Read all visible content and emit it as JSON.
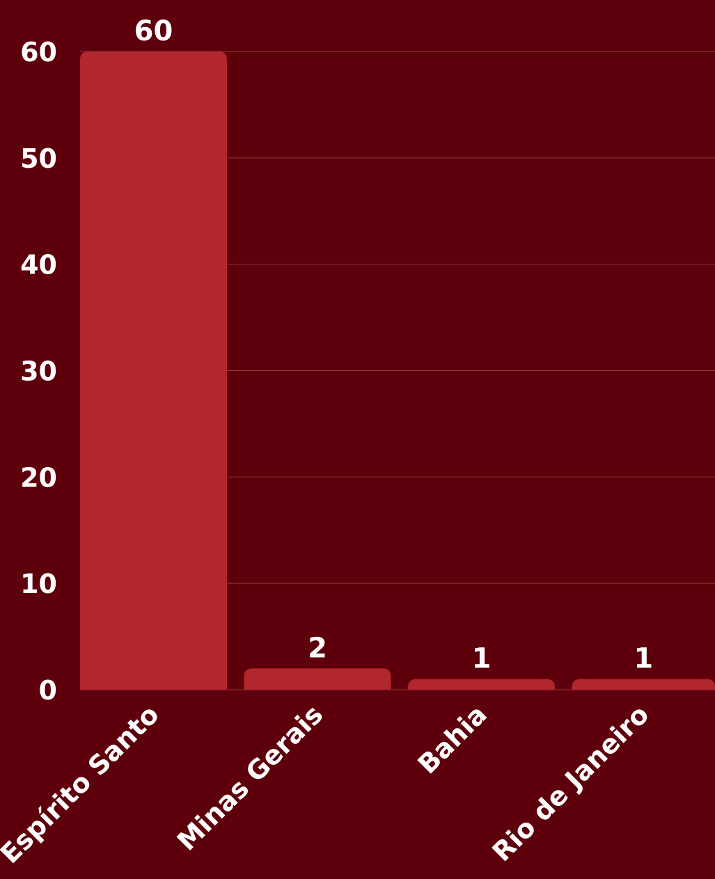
{
  "colors": {
    "background": "#5e000b",
    "bar": "#b2262e",
    "grid": "#8a3a42",
    "text": "#ffffff"
  },
  "chart_data": {
    "type": "bar",
    "categories": [
      "Espírito Santo",
      "Minas Gerais",
      "Bahia",
      "Rio de Janeiro"
    ],
    "values": [
      60,
      2,
      1,
      1
    ],
    "data_labels": [
      "60",
      "2",
      "1",
      "1"
    ],
    "yticks": [
      "0",
      "10",
      "20",
      "30",
      "40",
      "50",
      "60"
    ],
    "ylim": [
      0,
      60
    ],
    "grid": true,
    "legend": "none"
  }
}
